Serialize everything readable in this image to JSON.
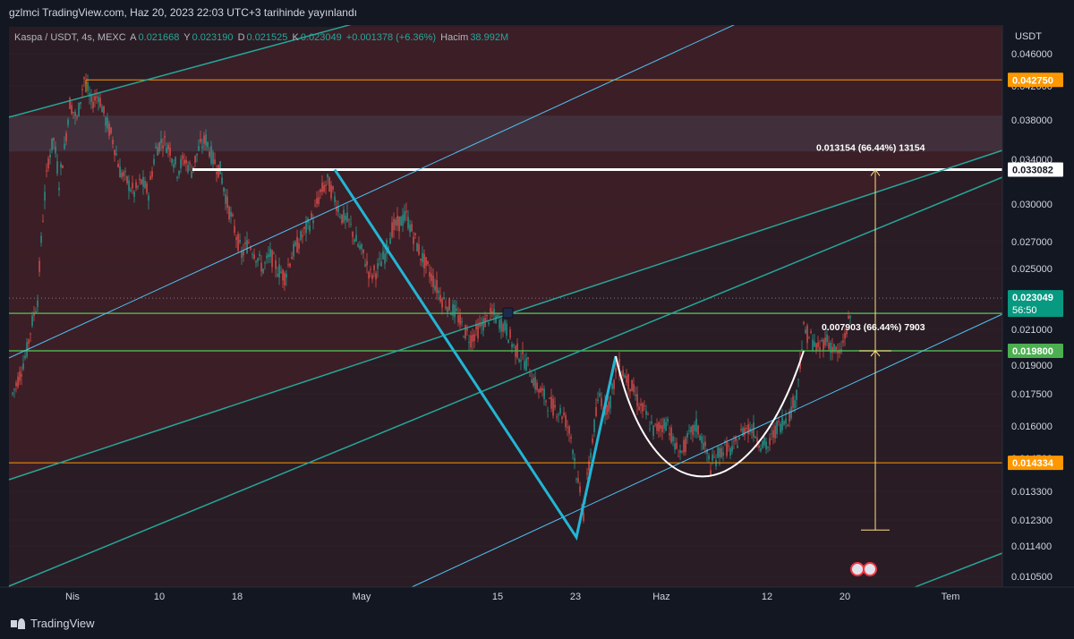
{
  "header": {
    "published_text": "gzlmci TradingView.com, Haz 20, 2023 22:03 UTC+3 tarihinde yayınlandı"
  },
  "legend": {
    "symbol": "Kaspa / USDT, 4s, MEXC",
    "open_label": "A",
    "open": "0.021668",
    "high_label": "Y",
    "high": "0.023190",
    "low_label": "D",
    "low": "0.021525",
    "close_label": "K",
    "close": "0.023049",
    "change": "+0.001378 (+6.36%)",
    "volume_label": "Hacim",
    "volume": "38.992M"
  },
  "price_axis": {
    "currency": "USDT",
    "ticks": [
      "0.046000",
      "0.042000",
      "0.038000",
      "0.034000",
      "0.030000",
      "0.027000",
      "0.025000",
      "0.021000",
      "0.019000",
      "0.017500",
      "0.016000",
      "0.014500",
      "0.013300",
      "0.012300",
      "0.011400",
      "0.010500"
    ],
    "labels": [
      {
        "text": "0.042750",
        "color": "#ff9800",
        "price": 0.04275
      },
      {
        "text": "0.033082",
        "color": "#ffffff",
        "price": 0.033082
      },
      {
        "text": "0.023049",
        "sub": "56:50",
        "color": "#089981",
        "price": 0.023049
      },
      {
        "text": "0.019800",
        "color": "#4caf50",
        "price": 0.0198
      },
      {
        "text": "0.014334",
        "color": "#ff9800",
        "price": 0.014334
      }
    ]
  },
  "time_axis": {
    "labels": [
      "Nis",
      "10",
      "18",
      "May",
      "15",
      "23",
      "Haz",
      "12",
      "20",
      "Tem"
    ]
  },
  "annotations": {
    "measure_top": "0.013154 (66.44%) 13154",
    "measure_bottom": "0.007903 (66.44%) 7903"
  },
  "levels": {
    "orange_top": 0.04275,
    "white_neckline": 0.033082,
    "green_upper": 0.02205,
    "green_lower": 0.0198,
    "orange_bottom": 0.014334,
    "target_bottom": 0.01195
  },
  "zones": {
    "blue_zone": [
      0.0348,
      0.0385
    ]
  },
  "colors": {
    "background": "#2a1c24",
    "zone": "#3d1f27",
    "grid": "#2a2e39",
    "up": "#26a69a",
    "down": "#ef5350",
    "channel_green": "#26a69a",
    "channel_blue": "#4fc3f7",
    "zigzag": "#22b5d4",
    "orange": "#ff9800",
    "green_line": "#4caf50",
    "measure": "#ffe082"
  },
  "footer": {
    "brand": "TradingView"
  }
}
